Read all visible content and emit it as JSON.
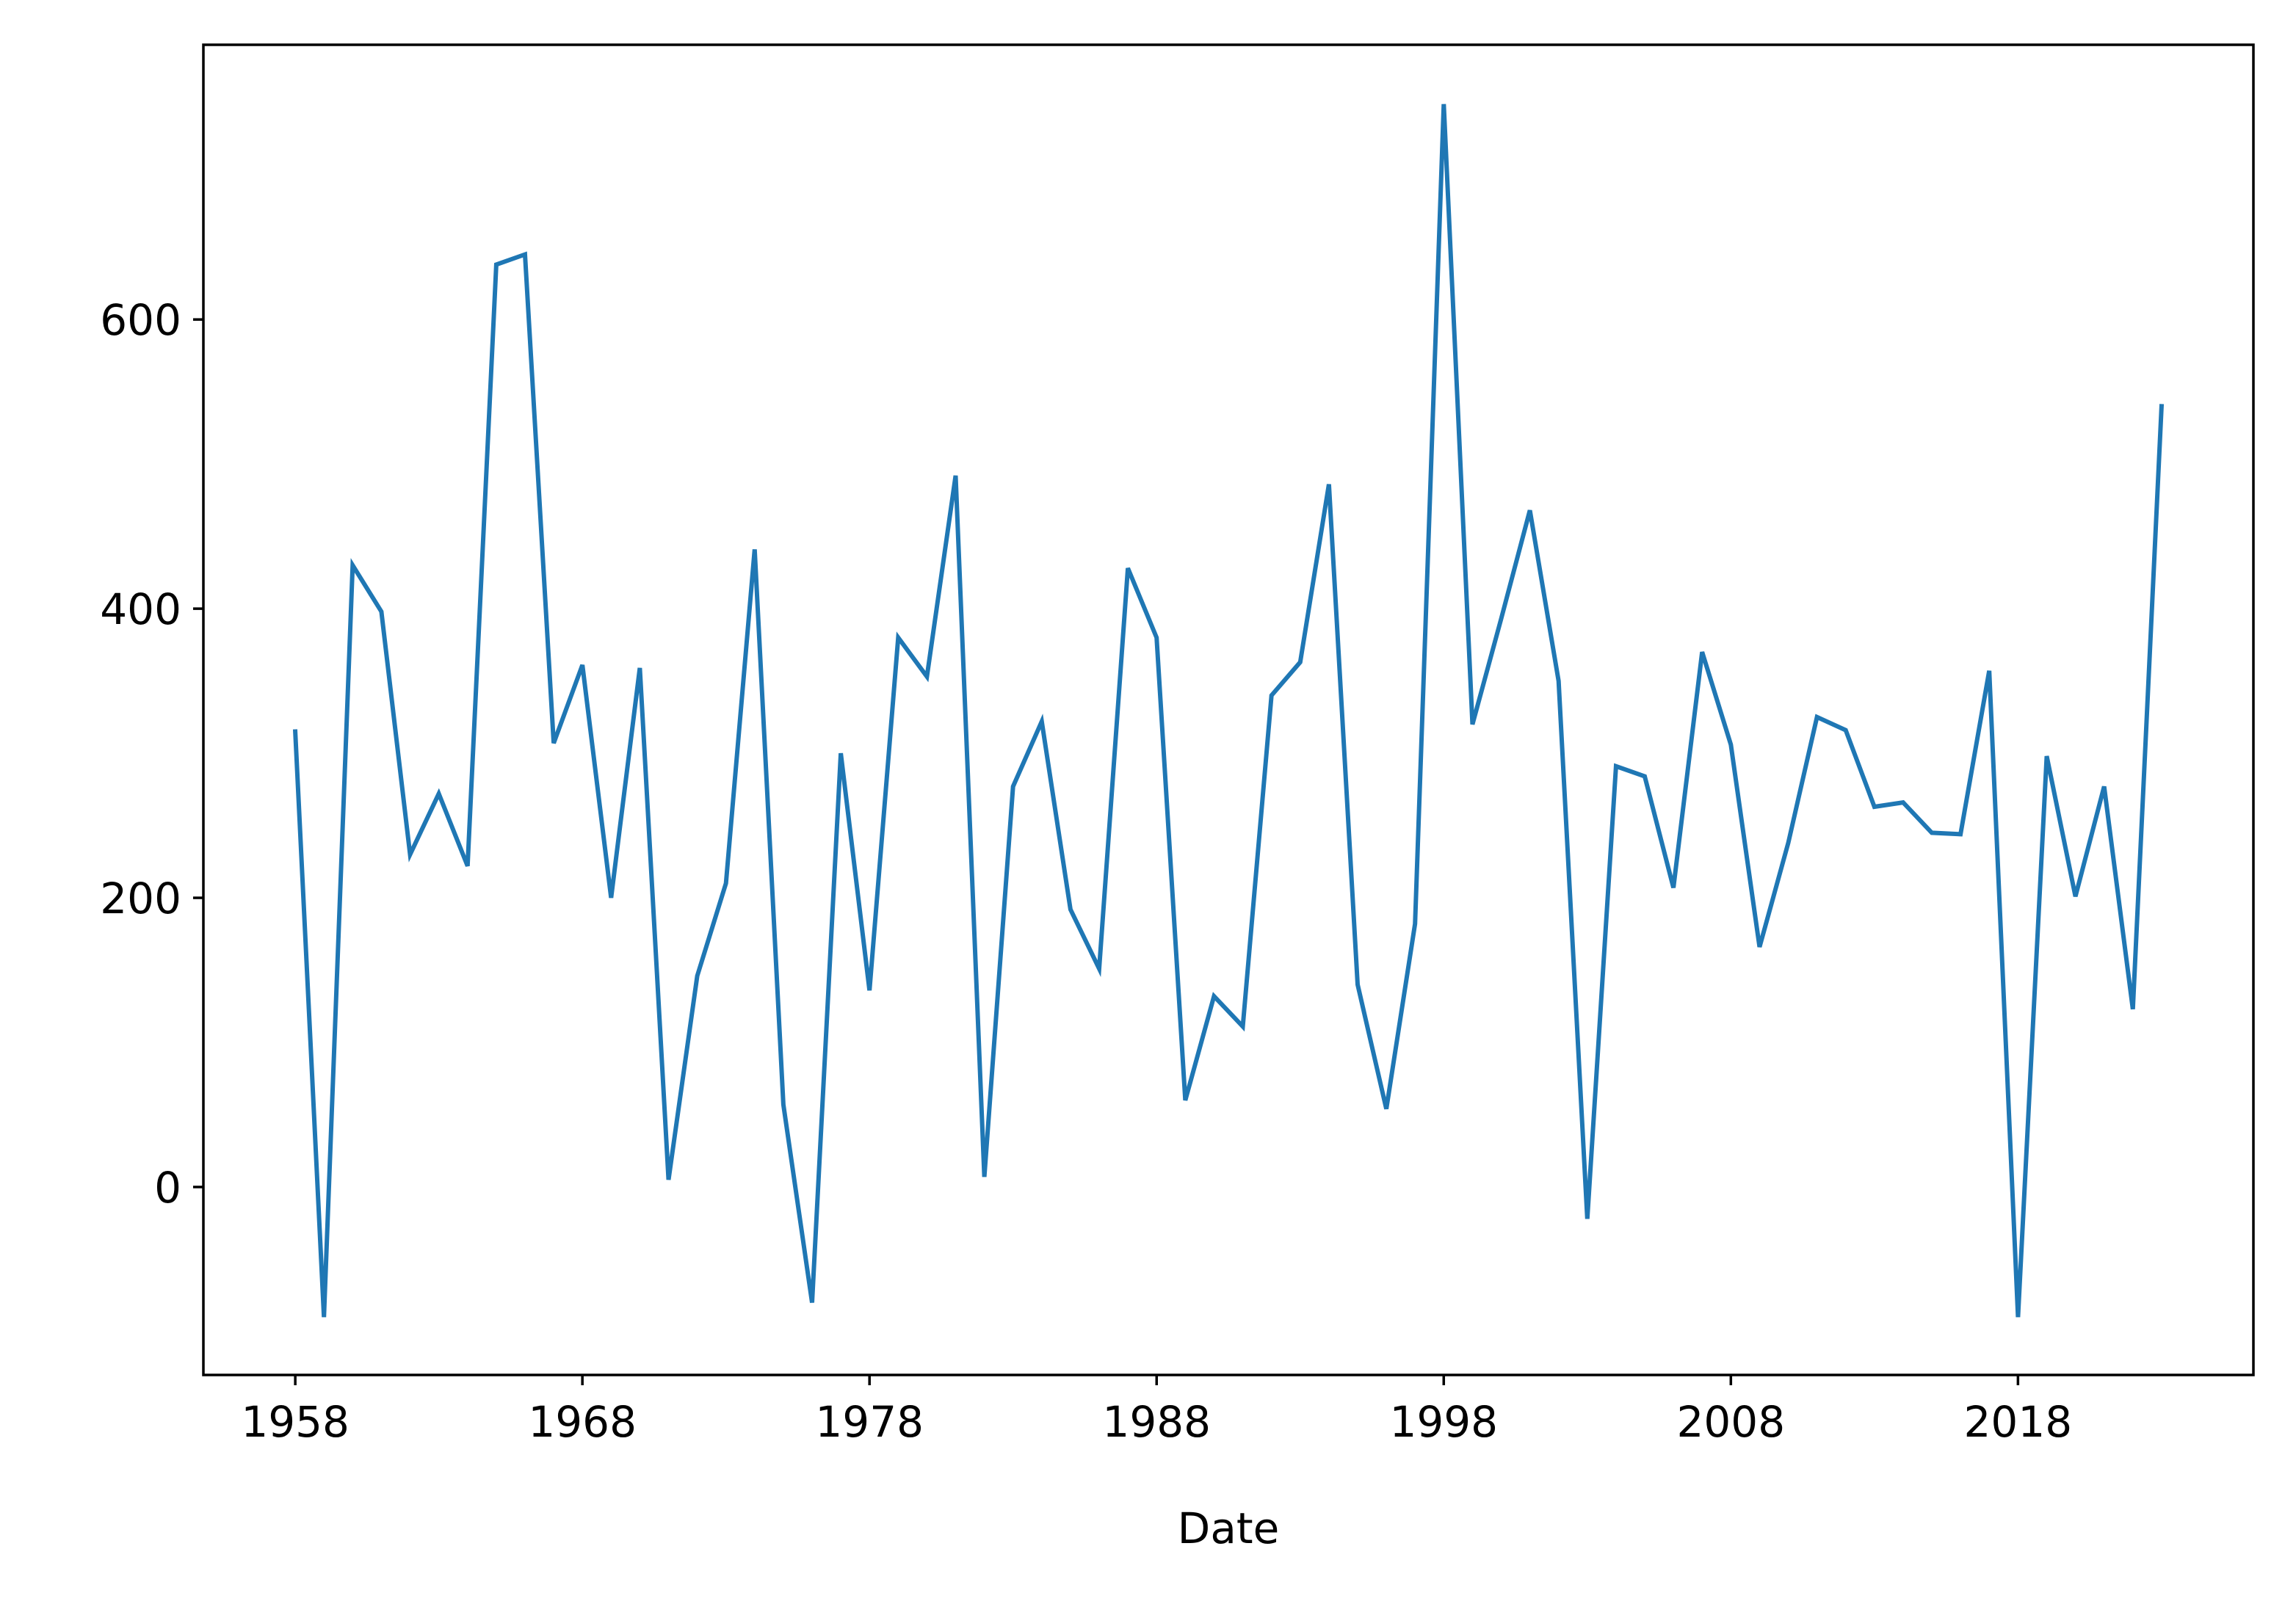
{
  "chart_data": {
    "type": "line",
    "title": "",
    "xlabel": "Date",
    "ylabel": "",
    "xlim": [
      1954.8,
      2026.2
    ],
    "ylim": [
      -130,
      790
    ],
    "x_ticks": [
      1958,
      1968,
      1978,
      1988,
      1998,
      2008,
      2018
    ],
    "y_ticks": [
      0,
      200,
      400,
      600
    ],
    "x_tick_labels": [
      "1958",
      "1968",
      "1978",
      "1988",
      "1998",
      "2008",
      "2018"
    ],
    "y_tick_labels": [
      "0",
      "200",
      "400",
      "600"
    ],
    "grid": false,
    "legend": "none",
    "series": [
      {
        "color": "#1f77b4",
        "x": [
          1958,
          1959,
          1960,
          1961,
          1962,
          1963,
          1964,
          1965,
          1966,
          1967,
          1968,
          1969,
          1970,
          1971,
          1972,
          1973,
          1974,
          1975,
          1976,
          1977,
          1978,
          1979,
          1980,
          1981,
          1982,
          1983,
          1984,
          1985,
          1986,
          1987,
          1988,
          1989,
          1990,
          1991,
          1992,
          1993,
          1994,
          1995,
          1996,
          1997,
          1998,
          1999,
          2000,
          2001,
          2002,
          2003,
          2004,
          2005,
          2006,
          2007,
          2008,
          2009,
          2010,
          2011,
          2012,
          2013,
          2014,
          2015,
          2016,
          2017,
          2018,
          2019,
          2020,
          2021,
          2022,
          2023
        ],
        "values": [
          315,
          -90,
          430,
          398,
          230,
          272,
          222,
          638,
          645,
          307,
          361,
          200,
          359,
          5,
          146,
          210,
          441,
          57,
          -80,
          300,
          136,
          380,
          353,
          492,
          7,
          277,
          322,
          192,
          151,
          428,
          380,
          60,
          132,
          111,
          340,
          363,
          486,
          140,
          54,
          182,
          749,
          320,
          393,
          468,
          350,
          -22,
          291,
          284,
          207,
          370,
          306,
          166,
          238,
          325,
          316,
          263,
          266,
          245,
          244,
          357,
          -90,
          298,
          201,
          277,
          123,
          540
        ]
      }
    ]
  }
}
